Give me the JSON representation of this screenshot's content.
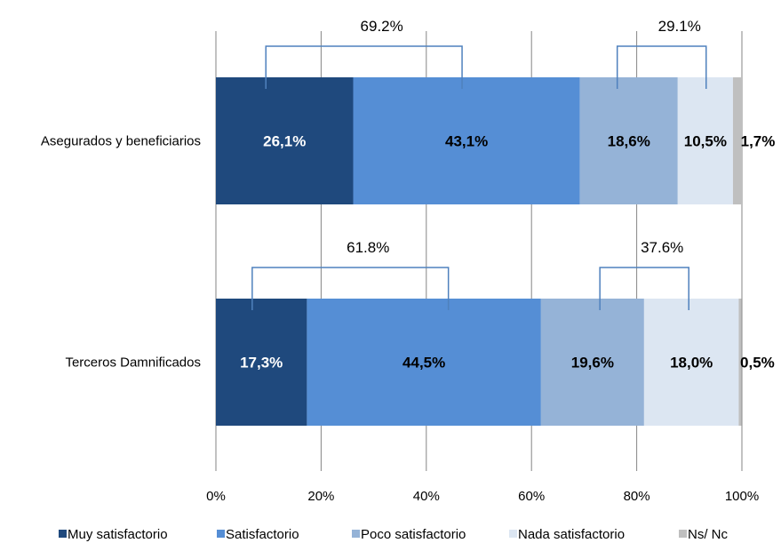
{
  "chart_data": {
    "type": "bar",
    "orientation": "horizontal",
    "stacked": "percent",
    "categories": [
      "Asegurados y beneficiarios",
      "Terceros Damnificados"
    ],
    "series": [
      {
        "name": "Muy  satisfactorio",
        "values": [
          26.1,
          17.3
        ],
        "labels": [
          "26,1%",
          "17,3%"
        ],
        "color": "#1f497d",
        "label_color": "#ffffff"
      },
      {
        "name": "Satisfactorio",
        "values": [
          43.1,
          44.5
        ],
        "labels": [
          "43,1%",
          "44,5%"
        ],
        "color": "#558ed5",
        "label_color": "#000000"
      },
      {
        "name": "Poco  satisfactorio",
        "values": [
          18.6,
          19.6
        ],
        "labels": [
          "18,6%",
          "19,6%"
        ],
        "color": "#95b3d7",
        "label_color": "#000000"
      },
      {
        "name": "Nada  satisfactorio",
        "values": [
          10.5,
          18.0
        ],
        "labels": [
          "10,5%",
          "18,0%"
        ],
        "color": "#dce6f2",
        "label_color": "#000000"
      },
      {
        "name": "Ns/ Nc",
        "values": [
          1.7,
          0.5
        ],
        "labels": [
          "1,7%",
          "0,5%"
        ],
        "color": "#bfbfbf",
        "label_color": "#000000"
      }
    ],
    "x_ticks": [
      "0%",
      "20%",
      "40%",
      "60%",
      "80%",
      "100%"
    ],
    "xlim": [
      0,
      100
    ],
    "grid": true,
    "legend": "bottom",
    "annotations": [
      {
        "category": 0,
        "text": "69.2%",
        "from": 9.5,
        "to": 46.8
      },
      {
        "category": 0,
        "text": "29.1%",
        "from": 76.3,
        "to": 93.2
      },
      {
        "category": 1,
        "text": "61.8%",
        "from": 6.9,
        "to": 44.2
      },
      {
        "category": 1,
        "text": "37.6%",
        "from": 73.0,
        "to": 89.9
      }
    ],
    "bracket_color": "#4f81bd"
  }
}
